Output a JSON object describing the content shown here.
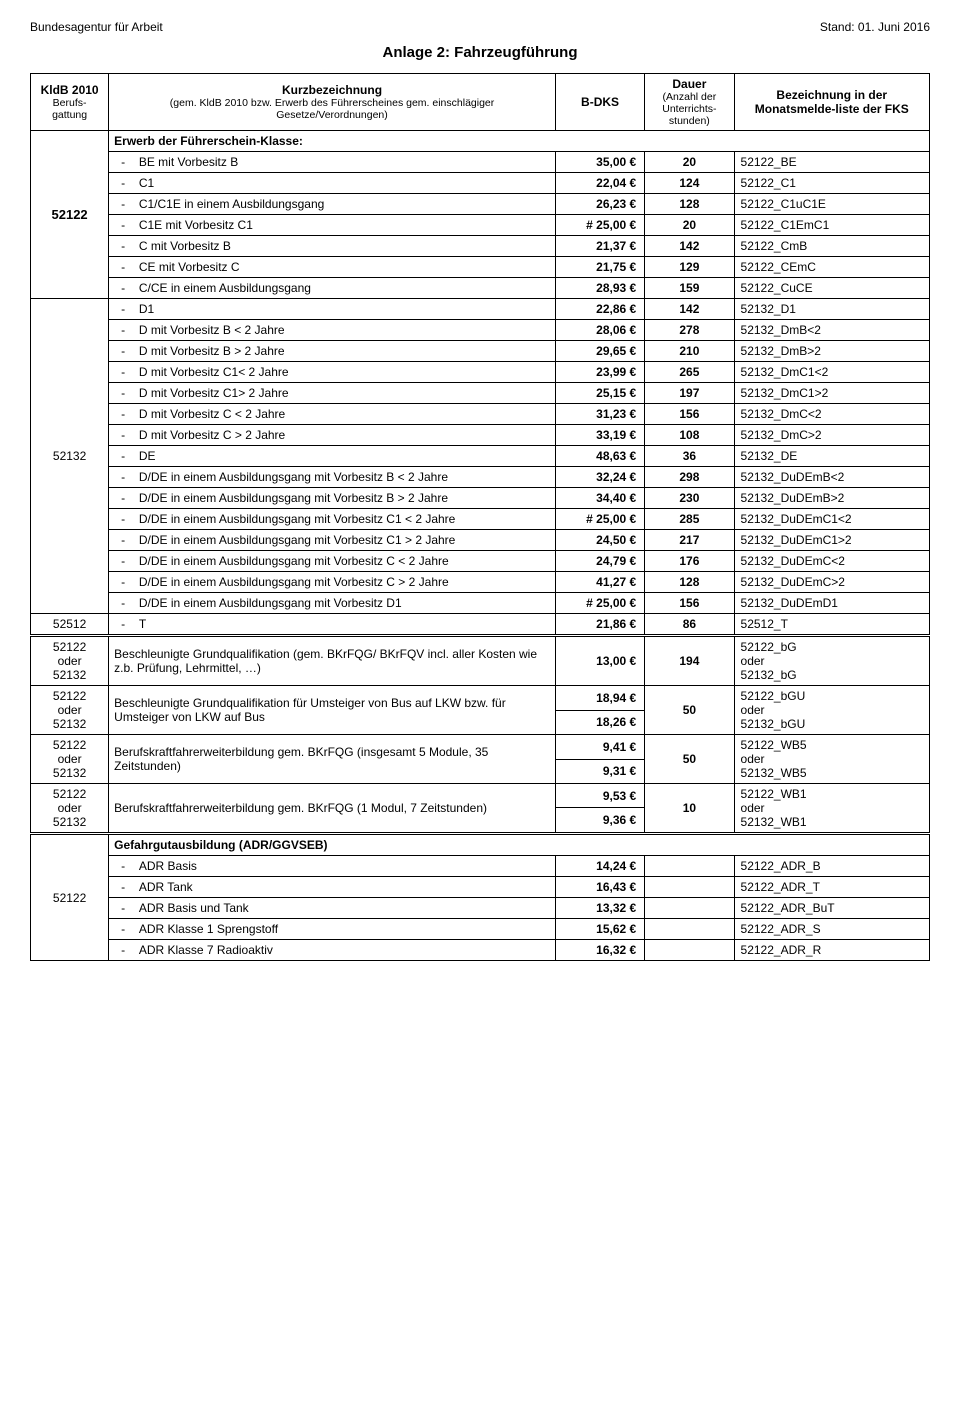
{
  "header": {
    "agency": "Bundesagentur für Arbeit",
    "stand": "Stand: 01. Juni  2016",
    "title": "Anlage 2: Fahrzeugführung"
  },
  "columns": {
    "kldb_title": "KldB 2010",
    "kldb_sub": "Berufs-gattung",
    "kurz_title": "Kurzbezeichnung",
    "kurz_sub": "(gem. KldB 2010 bzw. Erwerb des Führerscheines gem. einschlägiger Gesetze/Verordnungen)",
    "bdks": "B-DKS",
    "dauer_title": "Dauer",
    "dauer_sub": "(Anzahl der Unterrichts-stunden)",
    "bez": "Bezeichnung in der Monatsmelde-liste der FKS"
  },
  "sections": [
    {
      "kldb": "52122",
      "section_title": "Erwerb der Führerschein-Klasse:",
      "rows": [
        {
          "desc": "BE mit Vorbesitz B",
          "price": "35,00 €",
          "dauer": "20",
          "bez": "52122_BE"
        },
        {
          "desc": "C1",
          "price": "22,04 €",
          "dauer": "124",
          "bez": "52122_C1"
        },
        {
          "desc": "C1/C1E in einem Ausbildungsgang",
          "price": "26,23 €",
          "dauer": "128",
          "bez": "52122_C1uC1E"
        },
        {
          "desc": "C1E mit Vorbesitz C1",
          "price": "# 25,00 €",
          "dauer": "20",
          "bez": "52122_C1EmC1"
        },
        {
          "desc": "C mit Vorbesitz B",
          "price": "21,37 €",
          "dauer": "142",
          "bez": "52122_CmB"
        },
        {
          "desc": "CE mit Vorbesitz C",
          "price": "21,75 €",
          "dauer": "129",
          "bez": "52122_CEmC"
        },
        {
          "desc": "C/CE in einem Ausbildungsgang",
          "price": "28,93 €",
          "dauer": "159",
          "bez": "52122_CuCE"
        }
      ]
    },
    {
      "kldb": "52132",
      "rows": [
        {
          "desc": "D1",
          "price": "22,86 €",
          "dauer": "142",
          "bez": "52132_D1"
        },
        {
          "desc": "D mit Vorbesitz B < 2 Jahre",
          "price": "28,06 €",
          "dauer": "278",
          "bez": "52132_DmB<2"
        },
        {
          "desc": "D mit Vorbesitz B > 2 Jahre",
          "price": "29,65 €",
          "dauer": "210",
          "bez": "52132_DmB>2"
        },
        {
          "desc": "D mit Vorbesitz C1< 2 Jahre",
          "price": "23,99 €",
          "dauer": "265",
          "bez": "52132_DmC1<2"
        },
        {
          "desc": "D mit Vorbesitz C1> 2 Jahre",
          "price": "25,15 €",
          "dauer": "197",
          "bez": "52132_DmC1>2"
        },
        {
          "desc": "D mit Vorbesitz C < 2 Jahre",
          "price": "31,23 €",
          "dauer": "156",
          "bez": "52132_DmC<2"
        },
        {
          "desc": "D mit Vorbesitz C > 2 Jahre",
          "price": "33,19 €",
          "dauer": "108",
          "bez": "52132_DmC>2"
        },
        {
          "desc": "DE",
          "price": "48,63 €",
          "dauer": "36",
          "bez": "52132_DE"
        },
        {
          "desc": "D/DE in einem Ausbildungsgang mit Vorbesitz B < 2 Jahre",
          "price": "32,24 €",
          "dauer": "298",
          "bez": "52132_DuDEmB<2"
        },
        {
          "desc": "D/DE in einem Ausbildungsgang mit Vorbesitz B > 2 Jahre",
          "price": "34,40 €",
          "dauer": "230",
          "bez": "52132_DuDEmB>2"
        },
        {
          "desc": "D/DE in einem Ausbildungsgang mit Vorbesitz C1 < 2 Jahre",
          "price": "# 25,00 €",
          "dauer": "285",
          "bez": "52132_DuDEmC1<2"
        },
        {
          "desc": "D/DE in einem Ausbildungsgang mit Vorbesitz C1 > 2 Jahre",
          "price": "24,50 €",
          "dauer": "217",
          "bez": "52132_DuDEmC1>2"
        },
        {
          "desc": "D/DE in einem Ausbildungsgang mit Vorbesitz C < 2 Jahre",
          "price": "24,79 €",
          "dauer": "176",
          "bez": "52132_DuDEmC<2"
        },
        {
          "desc": "D/DE in einem Ausbildungsgang mit Vorbesitz C > 2 Jahre",
          "price": "41,27 €",
          "dauer": "128",
          "bez": "52132_DuDEmC>2"
        },
        {
          "desc": "D/DE in einem Ausbildungsgang mit Vorbesitz D1",
          "price": "# 25,00 €",
          "dauer": "156",
          "bez": "52132_DuDEmD1"
        }
      ]
    }
  ],
  "row_t": {
    "kldb": "52512",
    "desc": "T",
    "price": "21,86 €",
    "dauer": "86",
    "bez": "52512_T"
  },
  "multi_rows": [
    {
      "kldb": "52122\noder\n52132",
      "desc": "Beschleunigte Grundqualifikation (gem.  BKrFQG/ BKrFQV incl. aller Kosten wie z.b. Prüfung, Lehrmittel, …)",
      "prices": [
        "13,00 €"
      ],
      "dauer": "194",
      "bez": "52122_bG\noder\n52132_bG"
    },
    {
      "kldb": "52122\noder\n52132",
      "desc": "Beschleunigte Grundqualifikation für Umsteiger von Bus auf LKW bzw. für Umsteiger von LKW auf Bus",
      "prices": [
        "18,94 €",
        "18,26 €"
      ],
      "dauer": "50",
      "bez": "52122_bGU\noder\n52132_bGU"
    },
    {
      "kldb": "52122\noder\n52132",
      "desc": "Berufskraftfahrerweiterbildung gem. BKrFQG (insgesamt 5 Module, 35 Zeitstunden)",
      "prices": [
        "9,41 €",
        "9,31 €"
      ],
      "dauer": "50",
      "bez": "52122_WB5\noder\n52132_WB5"
    },
    {
      "kldb": "52122\noder\n52132",
      "desc": "Berufskraftfahrerweiterbildung gem. BKrFQG (1 Modul, 7 Zeitstunden)",
      "prices": [
        "9,53 €",
        "9,36 €"
      ],
      "dauer": "10",
      "bez": "52122_WB1\noder\n52132_WB1"
    }
  ],
  "adr": {
    "kldb": "52122",
    "title": "Gefahrgutausbildung (ADR/GGVSEB)",
    "rows": [
      {
        "desc": "ADR Basis",
        "price": "14,24 €",
        "bez": "52122_ADR_B"
      },
      {
        "desc": "ADR Tank",
        "price": "16,43 €",
        "bez": "52122_ADR_T"
      },
      {
        "desc": "ADR Basis und Tank",
        "price": "13,32 €",
        "bez": "52122_ADR_BuT"
      },
      {
        "desc": "ADR Klasse 1 Sprengstoff",
        "price": "15,62 €",
        "bez": "52122_ADR_S"
      },
      {
        "desc": "ADR Klasse 7 Radioaktiv",
        "price": "16,32 €",
        "bez": "52122_ADR_R"
      }
    ]
  }
}
